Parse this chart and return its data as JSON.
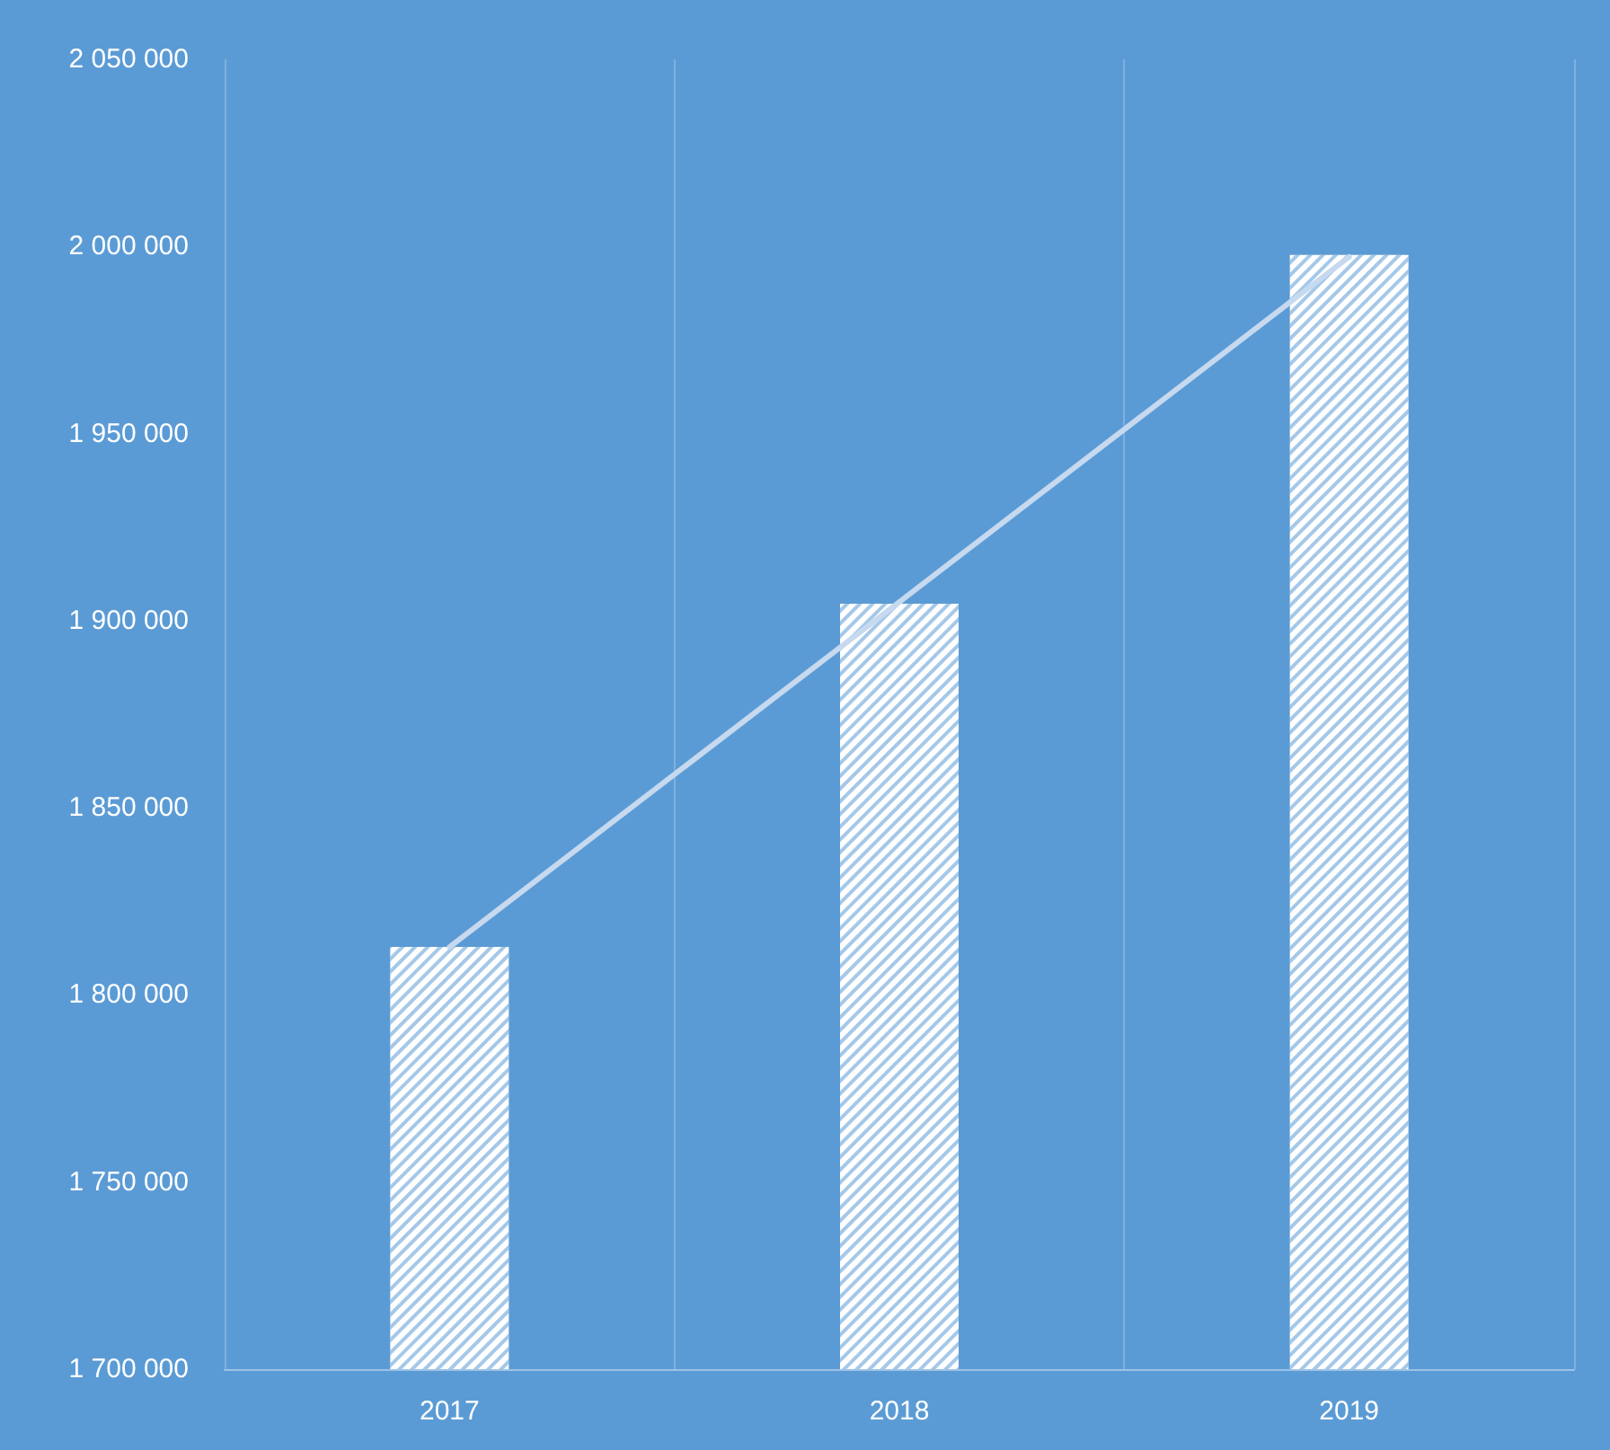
{
  "chart_data": {
    "type": "bar",
    "categories": [
      "2017",
      "2018",
      "2019"
    ],
    "series": [
      {
        "color": "#ffffff",
        "values": [
          1812800,
          1904500,
          1997700
        ]
      },
      {
        "type": "line",
        "color": "#c6d9ef",
        "values": [
          1812800,
          1905000,
          1997200
        ]
      }
    ],
    "ylim": [
      1700000,
      2050000
    ],
    "yticks": [
      {
        "value": 1700000,
        "label": "1 700 000"
      },
      {
        "value": 1750000,
        "label": "1 750 000"
      },
      {
        "value": 1800000,
        "label": "1 800 000"
      },
      {
        "value": 1850000,
        "label": "1 850 000"
      },
      {
        "value": 1900000,
        "label": "1 900 000"
      },
      {
        "value": 1950000,
        "label": "1 950 000"
      },
      {
        "value": 2000000,
        "label": "2 000 000"
      },
      {
        "value": 2050000,
        "label": "2 050 000"
      }
    ],
    "grid": "x",
    "marker": "none",
    "line_style": "solid"
  }
}
